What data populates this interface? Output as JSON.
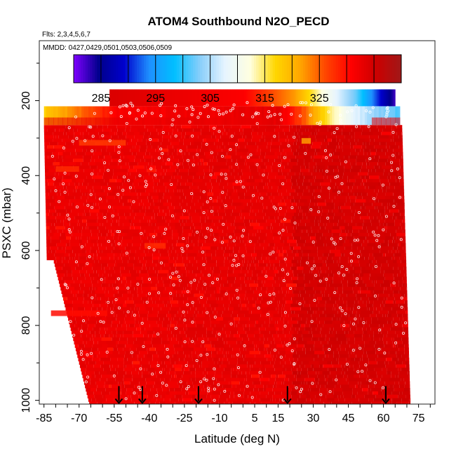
{
  "chart_data": {
    "type": "heatmap",
    "title": "ATOM4 Southbound N2O_PECD",
    "subtitle_flights": "Flts: 2,3,4,5,6,7",
    "subtitle_dates": "MMDD: 0427,0429,0501,0503,0506,0509",
    "xlabel": "Latitude (deg N)",
    "ylabel": "PSXC (mbar)",
    "x_ticks": [
      "-85",
      "-70",
      "-55",
      "-40",
      "-25",
      "-10",
      "5",
      "15",
      "30",
      "45",
      "60",
      "75"
    ],
    "x_tick_values": [
      -85,
      -70,
      -55,
      -40,
      -25,
      -10,
      5,
      15,
      30,
      45,
      60,
      75
    ],
    "y_ticks": [
      "200",
      "400",
      "600",
      "800",
      "1000"
    ],
    "y_tick_values": [
      200,
      400,
      600,
      800,
      1000
    ],
    "xlim": [
      -87,
      82
    ],
    "ylim": [
      1010,
      40
    ],
    "colorbar": {
      "ticks": [
        "285",
        "295",
        "305",
        "315",
        "325"
      ],
      "tick_values": [
        285,
        295,
        305,
        315,
        325
      ],
      "range": [
        280,
        340
      ],
      "colors": [
        "#7f00ff",
        "#00008b",
        "#0000cd",
        "#1e90ff",
        "#00bfff",
        "#87cefa",
        "#e6f4ff",
        "#ffffe0",
        "#ffd700",
        "#ffa500",
        "#ff4500",
        "#ff0000",
        "#cc0000",
        "#a01818"
      ]
    },
    "profile_arrows_lat": [
      -53,
      -43,
      -19,
      19,
      61
    ],
    "stratosphere_strip": {
      "pressure_range": [
        170,
        215
      ],
      "lat_range": [
        -57,
        65
      ],
      "gradient_lat": [
        -57,
        0,
        22,
        35,
        48,
        58,
        65
      ],
      "gradient_values": [
        334,
        331,
        322,
        311,
        302,
        290,
        282
      ]
    },
    "upper_band": {
      "pressure_range": [
        215,
        265
      ],
      "lat_range": [
        -85,
        67
      ],
      "gradient_lat": [
        -85,
        -75,
        -65,
        -55,
        15,
        25,
        35,
        45,
        55,
        67
      ],
      "gradient_values": [
        318,
        322,
        326,
        331,
        333,
        326,
        316,
        309,
        304,
        301
      ]
    },
    "background_value": 333
  }
}
